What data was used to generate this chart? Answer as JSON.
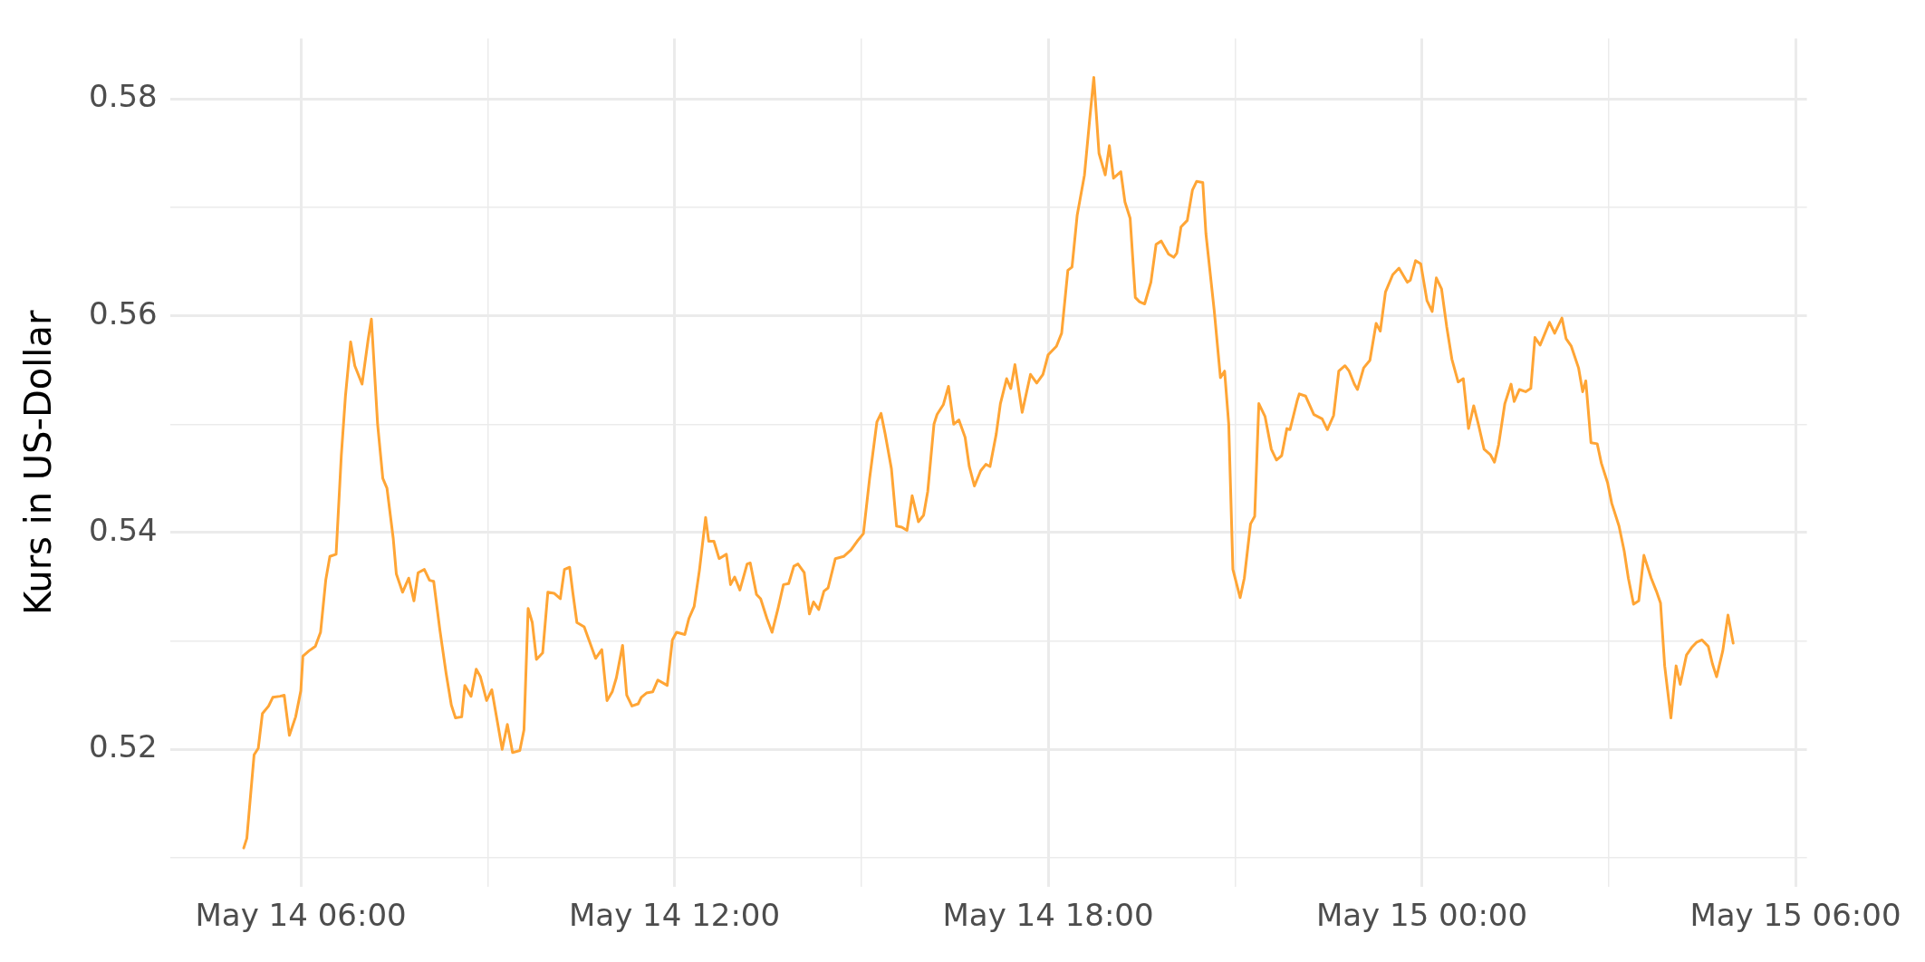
{
  "chart_data": {
    "type": "line",
    "ylabel": "Kurs in US-Dollar",
    "xlim": [
      "--05-14T03:54",
      "--05-15T06:11"
    ],
    "ylim": [
      0.5073,
      0.5856
    ],
    "xticks": [
      {
        "value": "--05-14T06:00",
        "label": "May 14 06:00"
      },
      {
        "value": "--05-14T09:00",
        "label": null
      },
      {
        "value": "--05-14T12:00",
        "label": "May 14 12:00"
      },
      {
        "value": "--05-14T15:00",
        "label": null
      },
      {
        "value": "--05-14T18:00",
        "label": "May 14 18:00"
      },
      {
        "value": "--05-14T21:00",
        "label": null
      },
      {
        "value": "--05-15T00:00",
        "label": "May 15 00:00"
      },
      {
        "value": "--05-15T03:00",
        "label": null
      },
      {
        "value": "--05-15T06:00",
        "label": "May 15 06:00"
      }
    ],
    "yticks": [
      {
        "value": 0.51,
        "label": null
      },
      0.52,
      {
        "value": 0.53,
        "label": null
      },
      0.54,
      {
        "value": 0.55,
        "label": null
      },
      0.56,
      {
        "value": 0.57,
        "label": null
      },
      0.58
    ],
    "grid": true,
    "legend": false,
    "marker": "none",
    "line_style": "solid",
    "series": [
      {
        "color": "#ffa535",
        "x": [
          "--05-14T05:05",
          "--05-14T05:08",
          "--05-14T05:15",
          "--05-14T05:19",
          "--05-14T05:23",
          "--05-14T05:29",
          "--05-14T05:33",
          "--05-14T05:40",
          "--05-14T05:44",
          "--05-14T05:49",
          "--05-14T05:55",
          "--05-14T06:00",
          "--05-14T06:02",
          "--05-14T06:08",
          "--05-14T06:11",
          "--05-14T06:14",
          "--05-14T06:19",
          "--05-14T06:24",
          "--05-14T06:28",
          "--05-14T06:34",
          "--05-14T06:39",
          "--05-14T06:43",
          "--05-14T06:48",
          "--05-14T06:52",
          "--05-14T06:59",
          "--05-14T07:05",
          "--05-14T07:08",
          "--05-14T07:14",
          "--05-14T07:19",
          "--05-14T07:23",
          "--05-14T07:29",
          "--05-14T07:32",
          "--05-14T07:38",
          "--05-14T07:44",
          "--05-14T07:49",
          "--05-14T07:53",
          "--05-14T07:59",
          "--05-14T08:04",
          "--05-14T08:08",
          "--05-14T08:14",
          "--05-14T08:20",
          "--05-14T08:25",
          "--05-14T08:29",
          "--05-14T08:35",
          "--05-14T08:38",
          "--05-14T08:44",
          "--05-14T08:49",
          "--05-14T08:53",
          "--05-14T08:59",
          "--05-14T09:04",
          "--05-14T09:14",
          "--05-14T09:19",
          "--05-14T09:24",
          "--05-14T09:31",
          "--05-14T09:35",
          "--05-14T09:39",
          "--05-14T09:43",
          "--05-14T09:47",
          "--05-14T09:53",
          "--05-14T09:58",
          "--05-14T10:04",
          "--05-14T10:10",
          "--05-14T10:14",
          "--05-14T10:19",
          "--05-14T10:22",
          "--05-14T10:26",
          "--05-14T10:33",
          "--05-14T10:44",
          "--05-14T10:50",
          "--05-14T10:55",
          "--05-14T11:00",
          "--05-14T11:04",
          "--05-14T11:10",
          "--05-14T11:14",
          "--05-14T11:19",
          "--05-14T11:25",
          "--05-14T11:28",
          "--05-14T11:33",
          "--05-14T11:39",
          "--05-14T11:44",
          "--05-14T11:53",
          "--05-14T11:58",
          "--05-14T12:02",
          "--05-14T12:10",
          "--05-14T12:14",
          "--05-14T12:19",
          "--05-14T12:24",
          "--05-14T12:30",
          "--05-14T12:33",
          "--05-14T12:38",
          "--05-14T12:43",
          "--05-14T12:50",
          "--05-14T12:54",
          "--05-14T12:58",
          "--05-14T13:03",
          "--05-14T13:10",
          "--05-14T13:13",
          "--05-14T13:19",
          "--05-14T13:23",
          "--05-14T13:29",
          "--05-14T13:34",
          "--05-14T13:40",
          "--05-14T13:45",
          "--05-14T13:50",
          "--05-14T13:55",
          "--05-14T13:59",
          "--05-14T14:05",
          "--05-14T14:10",
          "--05-14T14:14",
          "--05-14T14:19",
          "--05-14T14:24",
          "--05-14T14:28",
          "--05-14T14:35",
          "--05-14T14:43",
          "--05-14T14:50",
          "--05-14T14:56",
          "--05-14T15:02",
          "--05-14T15:08",
          "--05-14T15:15",
          "--05-14T15:19",
          "--05-14T15:23",
          "--05-14T15:29",
          "--05-14T15:34",
          "--05-14T15:39",
          "--05-14T15:44",
          "--05-14T15:49",
          "--05-14T15:55",
          "--05-14T16:00",
          "--05-14T16:04",
          "--05-14T16:10",
          "--05-14T16:13",
          "--05-14T16:19",
          "--05-14T16:24",
          "--05-14T16:29",
          "--05-14T16:34",
          "--05-14T16:40",
          "--05-14T16:44",
          "--05-14T16:49",
          "--05-14T16:55",
          "--05-14T17:00",
          "--05-14T17:04",
          "--05-14T17:10",
          "--05-14T17:14",
          "--05-14T17:20",
          "--05-14T17:24",
          "--05-14T17:28",
          "--05-14T17:35",
          "--05-14T17:43",
          "--05-14T17:49",
          "--05-14T17:55",
          "--05-14T18:00",
          "--05-14T18:08",
          "--05-14T18:13",
          "--05-14T18:19",
          "--05-14T18:23",
          "--05-14T18:28",
          "--05-14T18:35",
          "--05-14T18:40",
          "--05-14T18:44",
          "--05-14T18:49",
          "--05-14T18:55",
          "--05-14T18:59",
          "--05-14T19:03",
          "--05-14T19:10",
          "--05-14T19:14",
          "--05-14T19:19",
          "--05-14T19:24",
          "--05-14T19:28",
          "--05-14T19:33",
          "--05-14T19:39",
          "--05-14T19:44",
          "--05-14T19:49",
          "--05-14T19:56",
          "--05-14T20:01",
          "--05-14T20:04",
          "--05-14T20:08",
          "--05-14T20:14",
          "--05-14T20:19",
          "--05-14T20:23",
          "--05-14T20:29",
          "--05-14T20:32",
          "--05-14T20:40",
          "--05-14T20:46",
          "--05-14T20:50",
          "--05-14T20:54",
          "--05-14T20:58",
          "--05-14T21:05",
          "--05-14T21:09",
          "--05-14T21:15",
          "--05-14T21:19",
          "--05-14T21:23",
          "--05-14T21:29",
          "--05-14T21:35",
          "--05-14T21:40",
          "--05-14T21:45",
          "--05-14T21:50",
          "--05-14T21:53",
          "--05-14T22:00",
          "--05-14T22:02",
          "--05-14T22:08",
          "--05-14T22:16",
          "--05-14T22:24",
          "--05-14T22:29",
          "--05-14T22:35",
          "--05-14T22:40",
          "--05-14T22:46",
          "--05-14T22:50",
          "--05-14T22:55",
          "--05-14T22:58",
          "--05-14T23:04",
          "--05-14T23:10",
          "--05-14T23:16",
          "--05-14T23:20",
          "--05-14T23:25",
          "--05-14T23:32",
          "--05-14T23:38",
          "--05-14T23:46",
          "--05-14T23:49",
          "--05-14T23:54",
          "--05-14T23:59",
          "--05-15T00:05",
          "--05-15T00:10",
          "--05-15T00:14",
          "--05-15T00:19",
          "--05-15T00:24",
          "--05-15T00:29",
          "--05-15T00:35",
          "--05-15T00:40",
          "--05-15T00:45",
          "--05-15T00:50",
          "--05-15T00:55",
          "--05-15T01:00",
          "--05-15T01:06",
          "--05-15T01:10",
          "--05-15T01:14",
          "--05-15T01:20",
          "--05-15T01:26",
          "--05-15T01:29",
          "--05-15T01:34",
          "--05-15T01:40",
          "--05-15T01:45",
          "--05-15T01:49",
          "--05-15T01:54",
          "--05-15T02:03",
          "--05-15T02:08",
          "--05-15T02:15",
          "--05-15T02:19",
          "--05-15T02:24",
          "--05-15T02:31",
          "--05-15T02:35",
          "--05-15T02:38",
          "--05-15T02:43",
          "--05-15T02:49",
          "--05-15T02:53",
          "--05-15T02:59",
          "--05-15T03:03",
          "--05-15T03:10",
          "--05-15T03:15",
          "--05-15T03:19",
          "--05-15T03:24",
          "--05-15T03:29",
          "--05-15T03:34",
          "--05-15T03:41",
          "--05-15T03:46",
          "--05-15T03:50",
          "--05-15T03:54",
          "--05-15T04:00",
          "--05-15T04:05",
          "--05-15T04:09",
          "--05-15T04:15",
          "--05-15T04:20",
          "--05-15T04:25",
          "--05-15T04:30",
          "--05-15T04:36",
          "--05-15T04:40",
          "--05-15T04:44",
          "--05-15T04:50",
          "--05-15T04:55",
          "--05-15T05:00"
        ],
        "values": [
          0.5109,
          0.5118,
          0.5195,
          0.5201,
          0.5233,
          0.524,
          0.5248,
          0.5249,
          0.525,
          0.5213,
          0.523,
          0.5254,
          0.5286,
          0.5291,
          0.5293,
          0.5295,
          0.5308,
          0.5356,
          0.5378,
          0.538,
          0.5471,
          0.5526,
          0.5576,
          0.5554,
          0.5537,
          0.5579,
          0.5597,
          0.55,
          0.545,
          0.5441,
          0.5395,
          0.5362,
          0.5345,
          0.5358,
          0.5337,
          0.5363,
          0.5366,
          0.5356,
          0.5355,
          0.531,
          0.527,
          0.5241,
          0.5229,
          0.523,
          0.5259,
          0.5249,
          0.5274,
          0.5267,
          0.5245,
          0.5255,
          0.52,
          0.5223,
          0.5197,
          0.5199,
          0.5218,
          0.533,
          0.5317,
          0.5283,
          0.5289,
          0.5345,
          0.5344,
          0.5339,
          0.5366,
          0.5368,
          0.5345,
          0.5317,
          0.5313,
          0.5284,
          0.5292,
          0.5245,
          0.5253,
          0.5266,
          0.5296,
          0.525,
          0.524,
          0.5242,
          0.5248,
          0.5252,
          0.5253,
          0.5264,
          0.5259,
          0.5301,
          0.5308,
          0.5306,
          0.5321,
          0.5332,
          0.5365,
          0.5414,
          0.5392,
          0.5392,
          0.5376,
          0.538,
          0.5352,
          0.5359,
          0.5347,
          0.5371,
          0.5372,
          0.5343,
          0.5339,
          0.5321,
          0.5308,
          0.5331,
          0.5352,
          0.5353,
          0.5369,
          0.5371,
          0.5363,
          0.5325,
          0.5336,
          0.5329,
          0.5346,
          0.5349,
          0.5376,
          0.5378,
          0.5384,
          0.5392,
          0.5399,
          0.545,
          0.5502,
          0.551,
          0.5491,
          0.5459,
          0.5406,
          0.5405,
          0.5402,
          0.5434,
          0.541,
          0.5416,
          0.5438,
          0.55,
          0.5509,
          0.5518,
          0.5535,
          0.55,
          0.5504,
          0.5488,
          0.5461,
          0.5443,
          0.5457,
          0.5463,
          0.5461,
          0.5491,
          0.5519,
          0.5542,
          0.5533,
          0.5555,
          0.5511,
          0.5546,
          0.5538,
          0.5546,
          0.5564,
          0.5572,
          0.5584,
          0.5642,
          0.5645,
          0.5693,
          0.573,
          0.5781,
          0.582,
          0.575,
          0.573,
          0.5757,
          0.5727,
          0.5733,
          0.5705,
          0.569,
          0.5617,
          0.5613,
          0.5611,
          0.5631,
          0.5666,
          0.5669,
          0.5657,
          0.5654,
          0.5658,
          0.5682,
          0.5688,
          0.5716,
          0.5724,
          0.5723,
          0.5676,
          0.5605,
          0.5543,
          0.5549,
          0.55,
          0.5366,
          0.534,
          0.5358,
          0.5408,
          0.5415,
          0.5519,
          0.5507,
          0.5477,
          0.5467,
          0.5471,
          0.5496,
          0.5495,
          0.5522,
          0.5528,
          0.5526,
          0.5509,
          0.5505,
          0.5495,
          0.5508,
          0.5549,
          0.5554,
          0.5549,
          0.5537,
          0.5532,
          0.5552,
          0.5559,
          0.5593,
          0.5586,
          0.5622,
          0.5638,
          0.5644,
          0.5631,
          0.5633,
          0.5651,
          0.5648,
          0.5614,
          0.5604,
          0.5635,
          0.5625,
          0.559,
          0.556,
          0.5539,
          0.5542,
          0.5496,
          0.5517,
          0.5498,
          0.5477,
          0.5472,
          0.5465,
          0.5481,
          0.5519,
          0.5537,
          0.5521,
          0.5532,
          0.553,
          0.5533,
          0.558,
          0.5573,
          0.5594,
          0.5584,
          0.5598,
          0.5579,
          0.5572,
          0.5552,
          0.553,
          0.554,
          0.5483,
          0.5482,
          0.5464,
          0.5446,
          0.5427,
          0.5406,
          0.5383,
          0.5358,
          0.5334,
          0.5337,
          0.5379,
          0.5358,
          0.5346,
          0.5335,
          0.5277,
          0.5229,
          0.5277,
          0.526,
          0.5287,
          0.5294,
          0.5299,
          0.5301,
          0.5295,
          0.5279,
          0.5267,
          0.5291,
          0.5324,
          0.5298
        ]
      }
    ]
  }
}
